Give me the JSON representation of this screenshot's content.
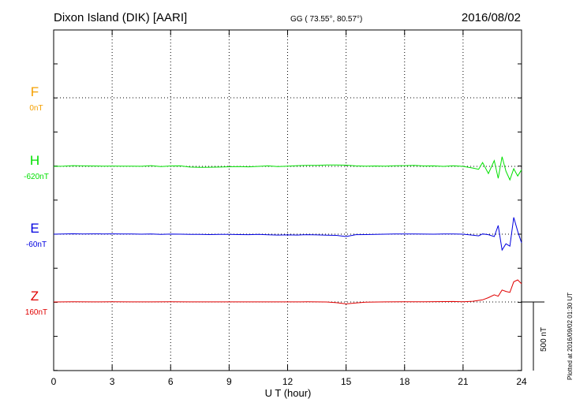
{
  "header": {
    "station": "Dixon Island (DIK)  [AARI]",
    "coords": "GG ( 73.55°,  80.57°)",
    "date": "2016/08/02"
  },
  "footer": {
    "plotted": "Plotted at 2016/09/02 01:30 UT"
  },
  "chart_data": {
    "type": "line",
    "title": "Dixon Island (DIK)  [AARI]",
    "xlabel": "U T (hour)",
    "ylabel": "",
    "xlim": [
      0,
      24
    ],
    "x_ticks": [
      "0",
      "3",
      "6",
      "9",
      "12",
      "15",
      "18",
      "21",
      "24"
    ],
    "grid": true,
    "scale_bar": "500 nT",
    "scale_nT": 500,
    "series": [
      {
        "name": "F",
        "baseline_label": "0nT",
        "color": "#f5a000",
        "x": [],
        "values": []
      },
      {
        "name": "H",
        "baseline_label": "-620nT",
        "color": "#00e000",
        "x": [
          0,
          0.5,
          1,
          1.5,
          2,
          2.5,
          3,
          3.5,
          4,
          4.5,
          5,
          5.5,
          6,
          6.5,
          7,
          7.5,
          8,
          8.5,
          9,
          9.5,
          10,
          10.5,
          11,
          11.5,
          12,
          12.5,
          13,
          13.5,
          14,
          14.5,
          15,
          15.5,
          16,
          16.5,
          17,
          17.5,
          18,
          18.5,
          19,
          19.5,
          20,
          20.5,
          21,
          21.5,
          21.8,
          22,
          22.3,
          22.6,
          22.8,
          23,
          23.2,
          23.4,
          23.6,
          23.8,
          24
        ],
        "values": [
          0,
          5,
          15,
          10,
          8,
          5,
          6,
          5,
          3,
          2,
          15,
          -5,
          8,
          10,
          -15,
          -20,
          -18,
          -15,
          -8,
          -5,
          -10,
          0,
          10,
          -5,
          5,
          15,
          20,
          22,
          28,
          30,
          25,
          10,
          5,
          8,
          5,
          12,
          15,
          20,
          8,
          10,
          0,
          12,
          0,
          -35,
          -60,
          80,
          -150,
          120,
          -250,
          200,
          -100,
          -280,
          -50,
          -200,
          -70
        ]
      },
      {
        "name": "E",
        "baseline_label": "-60nT",
        "color": "#0000e0",
        "x": [
          0,
          0.5,
          1,
          1.5,
          2,
          2.5,
          3,
          3.5,
          4,
          4.5,
          5,
          5.5,
          6,
          6.5,
          7,
          7.5,
          8,
          8.5,
          9,
          9.5,
          10,
          10.5,
          11,
          11.5,
          12,
          12.5,
          13,
          13.5,
          14,
          14.5,
          15,
          15.5,
          16,
          16.5,
          17,
          17.5,
          18,
          18.5,
          19,
          19.5,
          20,
          20.5,
          21,
          21.5,
          21.8,
          22,
          22.3,
          22.6,
          22.8,
          23,
          23.2,
          23.4,
          23.6,
          23.8,
          24
        ],
        "values": [
          0,
          5,
          8,
          5,
          6,
          5,
          6,
          5,
          3,
          0,
          5,
          -3,
          2,
          0,
          -3,
          -5,
          -8,
          -5,
          -5,
          -8,
          -10,
          -5,
          -12,
          -18,
          -15,
          -18,
          -10,
          -15,
          -20,
          -25,
          -50,
          -10,
          -8,
          -5,
          0,
          3,
          5,
          5,
          2,
          0,
          3,
          5,
          0,
          -20,
          -35,
          5,
          -10,
          -50,
          180,
          -330,
          -200,
          -250,
          350,
          60,
          -180
        ]
      },
      {
        "name": "Z",
        "baseline_label": "160nT",
        "color": "#e00000",
        "x": [
          0,
          1,
          2,
          3,
          4,
          5,
          6,
          7,
          8,
          9,
          10,
          11,
          12,
          13,
          14,
          14.5,
          15,
          15.5,
          16,
          17,
          18,
          19,
          20,
          20.5,
          21,
          21.5,
          22,
          22.3,
          22.6,
          22.8,
          23,
          23.2,
          23.4,
          23.6,
          23.8,
          24
        ],
        "values": [
          0,
          3,
          2,
          3,
          2,
          2,
          3,
          2,
          2,
          1,
          1,
          2,
          2,
          3,
          0,
          -15,
          -40,
          -20,
          -5,
          2,
          5,
          5,
          8,
          10,
          5,
          15,
          45,
          90,
          150,
          120,
          250,
          220,
          200,
          420,
          460,
          380
        ]
      }
    ]
  }
}
